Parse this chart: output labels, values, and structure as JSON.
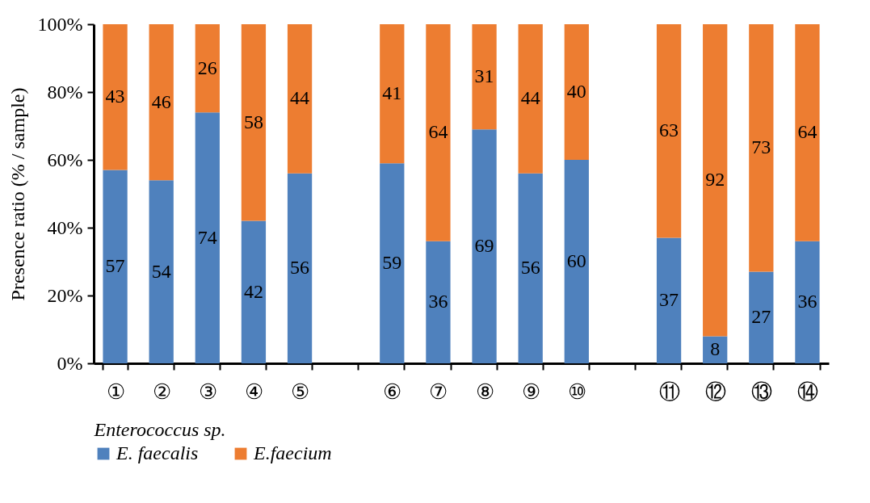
{
  "chart_data": {
    "type": "bar",
    "stacked": true,
    "xlabel": "Enterococcus sp.",
    "ylabel": "Presence ratio (% / sample)",
    "categories": [
      "①",
      "②",
      "③",
      "④",
      "⑤",
      null,
      "⑥",
      "⑦",
      "⑧",
      "⑨",
      "⑩",
      null,
      "⑪",
      "⑫",
      "⑬",
      "⑭"
    ],
    "series": [
      {
        "name": "E. faecalis",
        "color": "#4f81bd",
        "values": [
          57,
          54,
          74,
          42,
          56,
          null,
          59,
          36,
          69,
          56,
          60,
          null,
          37,
          8,
          27,
          36
        ]
      },
      {
        "name": "E.faecium",
        "color": "#ed7d31",
        "values": [
          43,
          46,
          26,
          58,
          44,
          null,
          41,
          64,
          31,
          44,
          40,
          null,
          63,
          92,
          73,
          64
        ]
      }
    ],
    "ylim": [
      0,
      100
    ],
    "yticks": [
      {
        "value": 0,
        "label": "0%"
      },
      {
        "value": 20,
        "label": "20%"
      },
      {
        "value": 40,
        "label": "40%"
      },
      {
        "value": 60,
        "label": "60%"
      },
      {
        "value": 80,
        "label": "80%"
      },
      {
        "value": 100,
        "label": "100%"
      }
    ],
    "grid": false,
    "legend": "bottom",
    "data_labels": true
  }
}
